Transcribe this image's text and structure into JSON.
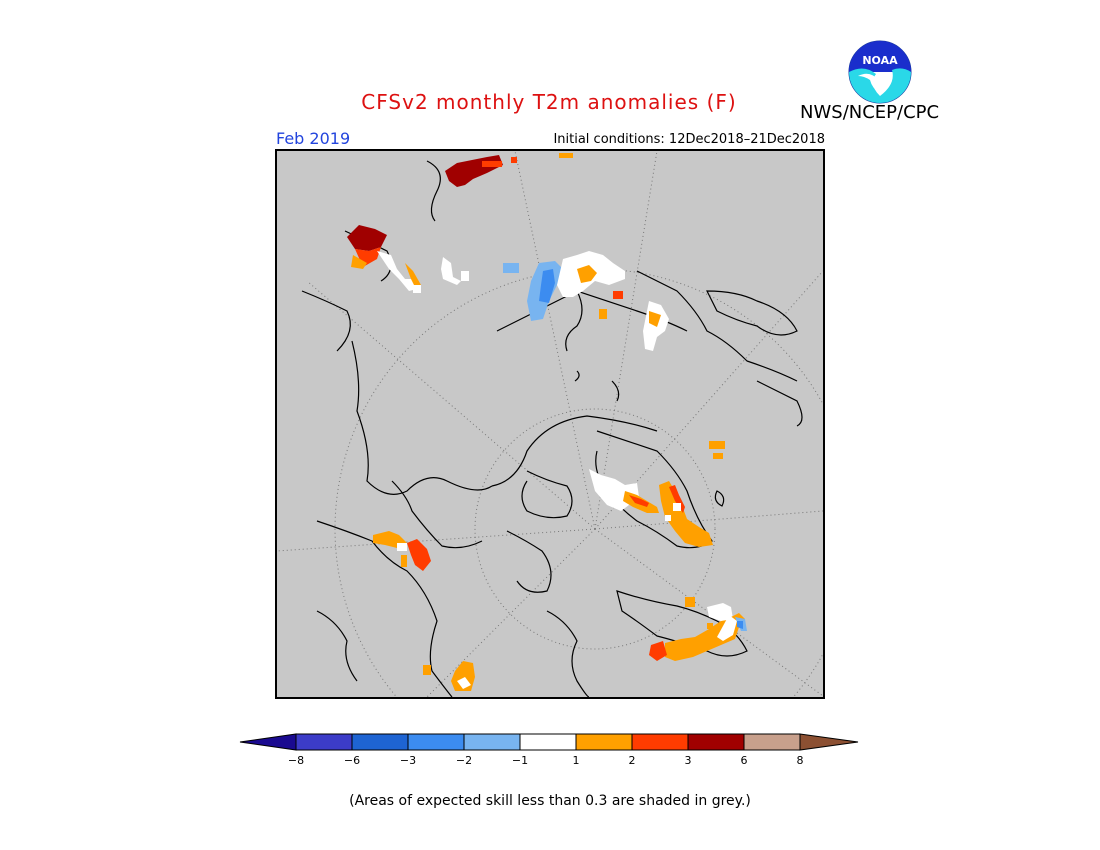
{
  "title": "CFSv2 monthly T2m anomalies (F)",
  "agency": "NWS/NCEP/CPC",
  "logo_text": "NOAA",
  "month_label": "Feb 2019",
  "initial_conditions": "Initial conditions: 12Dec2018–21Dec2018",
  "note": "(Areas of expected skill less than 0.3 are shaded in grey.)",
  "colors": {
    "title": "#dd1111",
    "month": "#2244dd",
    "grey_mask": "#c8c8c8"
  },
  "colorbar": {
    "labels": [
      "−8",
      "−6",
      "−3",
      "−2",
      "−1",
      "1",
      "2",
      "3",
      "6",
      "8"
    ],
    "colors": [
      "#1a0a90",
      "#3c3cc8",
      "#1e64d2",
      "#3c8cf0",
      "#78b4f0",
      "#ffffff",
      "#ffa000",
      "#ff3c00",
      "#a00000",
      "#c8a08c",
      "#8c5032"
    ]
  }
}
